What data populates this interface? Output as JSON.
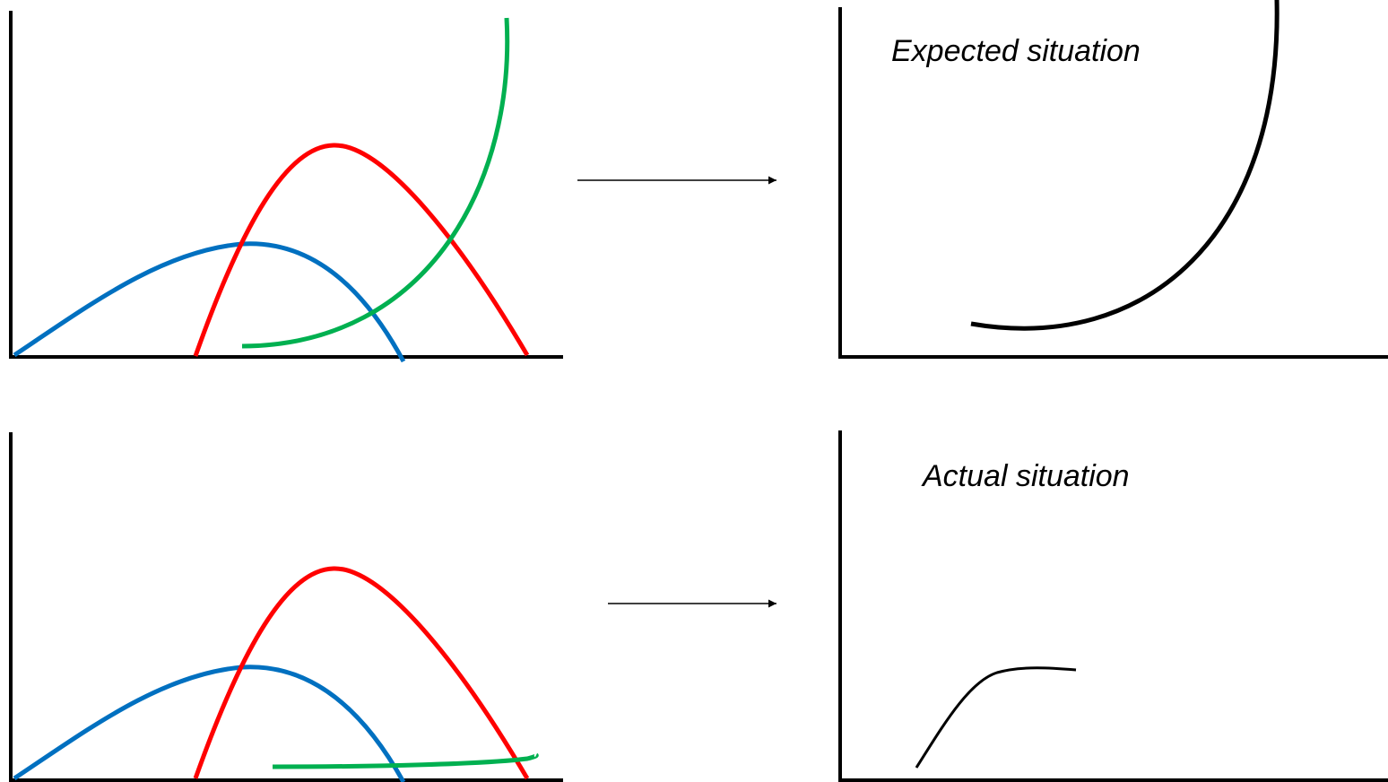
{
  "panels": {
    "expected": {
      "caption": "Expected situation"
    },
    "actual": {
      "caption": "Actual situation"
    }
  },
  "colors": {
    "axis": "#000000",
    "blue": "#0070c0",
    "red": "#ff0000",
    "green": "#00b050",
    "result": "#000000"
  },
  "icons": {
    "arrow": "right-arrow-icon"
  }
}
